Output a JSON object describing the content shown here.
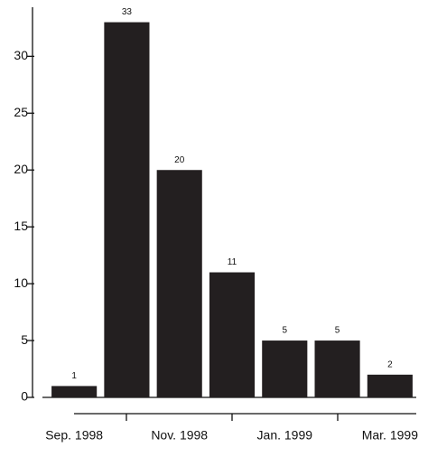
{
  "chart_data": {
    "type": "bar",
    "categories": [
      "Sep. 1998",
      null,
      "Nov. 1998",
      null,
      "Jan. 1999",
      null,
      "Mar. 1999"
    ],
    "values": [
      1,
      33,
      20,
      11,
      5,
      5,
      2
    ],
    "color": "#231f20",
    "ylim": [
      0,
      34
    ],
    "yticks": [
      0,
      5,
      10,
      15,
      20,
      25,
      30
    ]
  }
}
